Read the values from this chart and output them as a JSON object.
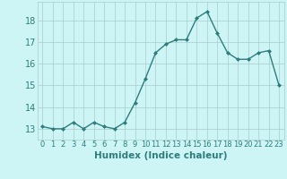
{
  "x": [
    0,
    1,
    2,
    3,
    4,
    5,
    6,
    7,
    8,
    9,
    10,
    11,
    12,
    13,
    14,
    15,
    16,
    17,
    18,
    19,
    20,
    21,
    22,
    23
  ],
  "y": [
    13.1,
    13.0,
    13.0,
    13.3,
    13.0,
    13.3,
    13.1,
    13.0,
    13.3,
    14.2,
    15.3,
    16.5,
    16.9,
    17.1,
    17.1,
    18.1,
    18.4,
    17.4,
    16.5,
    16.2,
    16.2,
    16.5,
    16.6,
    15.0
  ],
  "line_color": "#2d7d7d",
  "marker_color": "#2d7d7d",
  "bg_color": "#cef5f5",
  "grid_color": "#aacccc",
  "xlabel": "Humidex (Indice chaleur)",
  "xlim": [
    -0.5,
    23.5
  ],
  "ylim": [
    12.5,
    18.85
  ],
  "yticks": [
    13,
    14,
    15,
    16,
    17,
    18
  ],
  "xtick_labels": [
    "0",
    "1",
    "2",
    "3",
    "4",
    "5",
    "6",
    "7",
    "8",
    "9",
    "10",
    "11",
    "12",
    "13",
    "14",
    "15",
    "16",
    "17",
    "18",
    "19",
    "20",
    "21",
    "22",
    "23"
  ],
  "xlabel_fontsize": 7.5,
  "ytick_fontsize": 7,
  "xtick_fontsize": 6,
  "label_color": "#2d7d7d"
}
